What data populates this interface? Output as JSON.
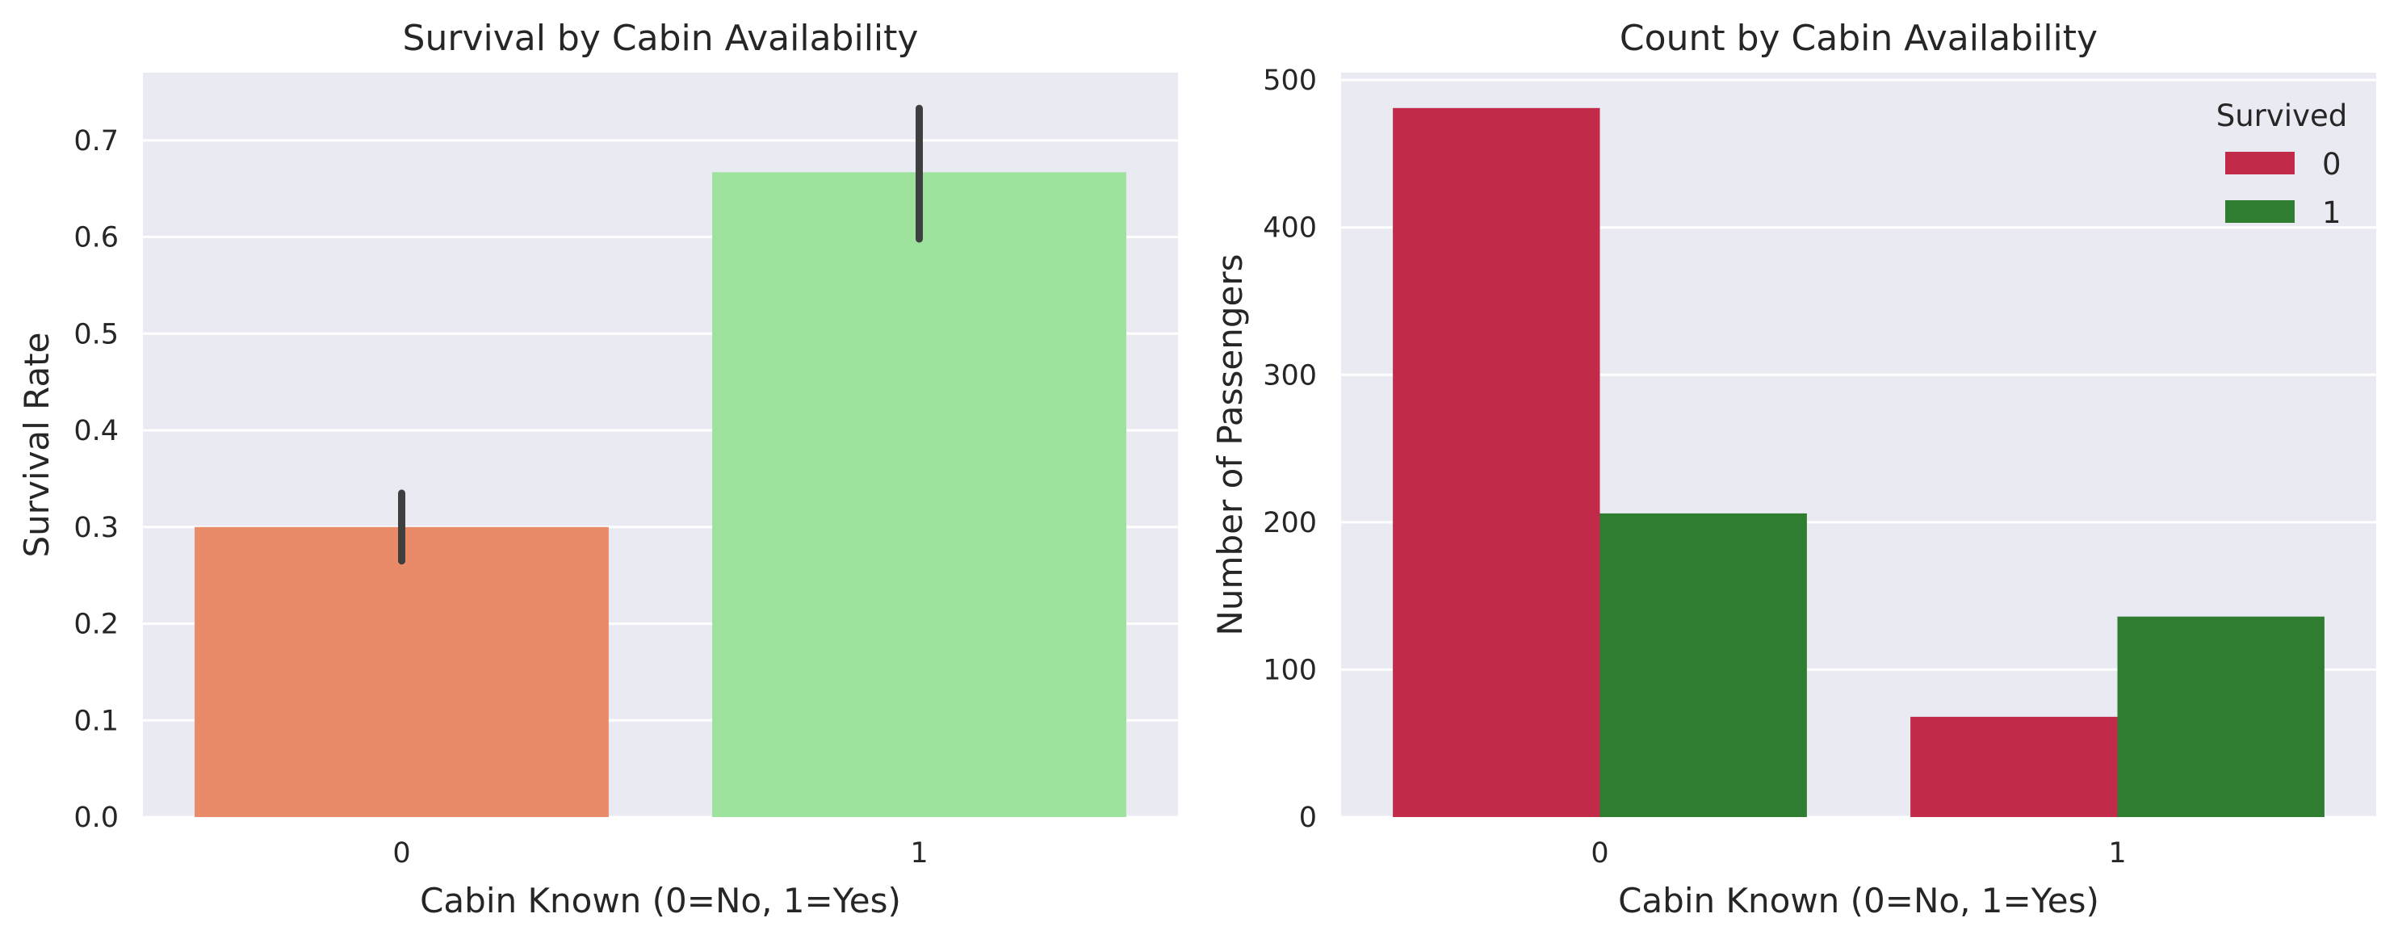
{
  "chart_data": [
    {
      "type": "bar",
      "title": "Survival by Cabin Availability",
      "xlabel": "Cabin Known (0=No, 1=Yes)",
      "ylabel": "Survival Rate",
      "categories": [
        "0",
        "1"
      ],
      "values": [
        0.3,
        0.667
      ],
      "error_bars": [
        [
          0.265,
          0.335
        ],
        [
          0.598,
          0.733
        ]
      ],
      "colors": [
        "#e98a68",
        "#9de29d"
      ],
      "ylim": [
        0,
        0.77
      ],
      "yticks": [
        "0.0",
        "0.1",
        "0.2",
        "0.3",
        "0.4",
        "0.5",
        "0.6",
        "0.7"
      ],
      "grid": true
    },
    {
      "type": "bar",
      "title": "Count by Cabin Availability",
      "xlabel": "Cabin Known (0=No, 1=Yes)",
      "ylabel": "Number of Passengers",
      "categories": [
        "0",
        "1"
      ],
      "legend_title": "Survived",
      "legend_position": "top-right",
      "series": [
        {
          "name": "0",
          "values": [
            481,
            68
          ],
          "color": "#c22a4a"
        },
        {
          "name": "1",
          "values": [
            206,
            136
          ],
          "color": "#2e7d30"
        }
      ],
      "ylim": [
        0,
        505
      ],
      "yticks": [
        "0",
        "100",
        "200",
        "300",
        "400",
        "500"
      ],
      "grid": true
    }
  ]
}
